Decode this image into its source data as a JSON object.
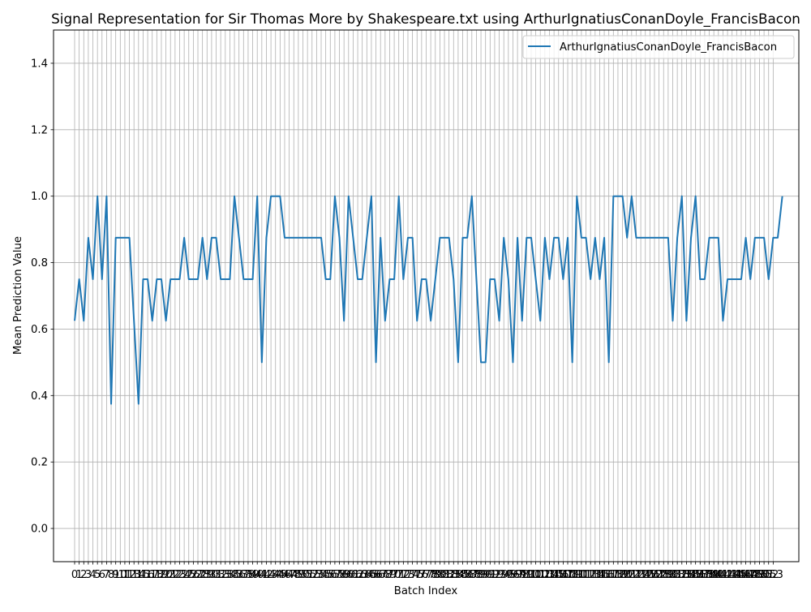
{
  "chart_data": {
    "type": "line",
    "title": "Signal Representation for Sir Thomas More by Shakespeare.txt using ArthurIgnatiusConanDoyle_FrancisBacon",
    "xlabel": "Batch Index",
    "ylabel": "Mean Prediction Value",
    "xlim": [
      -4.62,
      158.62
    ],
    "ylim": [
      -0.1,
      1.5
    ],
    "yticks": [
      0.0,
      0.2,
      0.4,
      0.6,
      0.8,
      1.0,
      1.2,
      1.4
    ],
    "ytick_labels": [
      "0.0",
      "0.2",
      "0.4",
      "0.6",
      "0.8",
      "1.0",
      "1.2",
      "1.4"
    ],
    "xticks_from": 0,
    "xticks_to": 153,
    "grid": true,
    "legend_position": "top-right",
    "line_color": "#1f77b4",
    "series": [
      {
        "name": "ArthurIgnatiusConanDoyle_FrancisBacon",
        "values": [
          0.625,
          0.75,
          0.625,
          0.875,
          0.75,
          1.0,
          0.75,
          1.0,
          0.375,
          0.875,
          0.875,
          0.875,
          0.875,
          0.625,
          0.375,
          0.75,
          0.75,
          0.625,
          0.75,
          0.75,
          0.625,
          0.75,
          0.75,
          0.75,
          0.875,
          0.75,
          0.75,
          0.75,
          0.875,
          0.75,
          0.875,
          0.875,
          0.75,
          0.75,
          0.75,
          1.0,
          0.875,
          0.75,
          0.75,
          0.75,
          1.0,
          0.5,
          0.875,
          1.0,
          1.0,
          1.0,
          0.875,
          0.875,
          0.875,
          0.875,
          0.875,
          0.875,
          0.875,
          0.875,
          0.875,
          0.75,
          0.75,
          1.0,
          0.875,
          0.625,
          1.0,
          0.875,
          0.75,
          0.75,
          0.875,
          1.0,
          0.5,
          0.875,
          0.625,
          0.75,
          0.75,
          1.0,
          0.75,
          0.875,
          0.875,
          0.625,
          0.75,
          0.75,
          0.625,
          0.75,
          0.875,
          0.875,
          0.875,
          0.75,
          0.5,
          0.875,
          0.875,
          1.0,
          0.75,
          0.5,
          0.5,
          0.75,
          0.75,
          0.625,
          0.875,
          0.75,
          0.5,
          0.875,
          0.625,
          0.875,
          0.875,
          0.75,
          0.625,
          0.875,
          0.75,
          0.875,
          0.875,
          0.75,
          0.875,
          0.5,
          1.0,
          0.875,
          0.875,
          0.75,
          0.875,
          0.75,
          0.875,
          0.5,
          1.0,
          1.0,
          1.0,
          0.875,
          1.0,
          0.875,
          0.875,
          0.875,
          0.875,
          0.875,
          0.875,
          0.875,
          0.875,
          0.625,
          0.875,
          1.0,
          0.625,
          0.875,
          1.0,
          0.75,
          0.75,
          0.875,
          0.875,
          0.875,
          0.625,
          0.75,
          0.75,
          0.75,
          0.75,
          0.875,
          0.75,
          0.875,
          0.875,
          0.875,
          0.75,
          0.875,
          0.875,
          1.0
        ]
      }
    ]
  }
}
